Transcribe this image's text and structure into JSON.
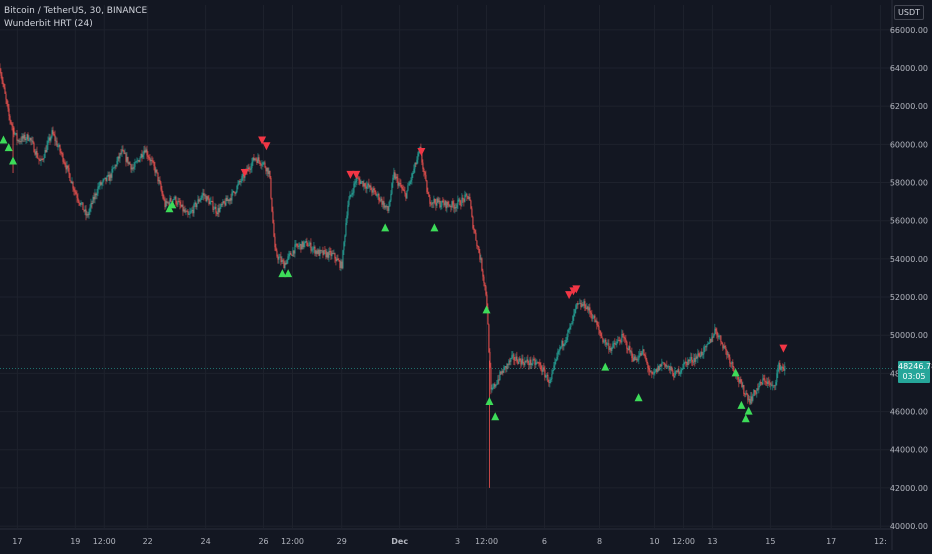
{
  "header": {
    "symbol_line": "Bitcoin / TetherUS, 30, BINANCE",
    "indicator_line": "Wunderbit HRT (24)",
    "currency": "USDT"
  },
  "price_tag": {
    "price": "48246.78",
    "countdown": "03:05"
  },
  "colors": {
    "background": "#131722",
    "bull": "#26a69a",
    "bear": "#ef5350",
    "buy_signal": "#3ddc59",
    "sell_signal": "#f23645",
    "grid": "#1e222d",
    "axis_text": "#b2b5be"
  },
  "chart_data": {
    "type": "candlestick",
    "symbol": "BTCUSDT",
    "timeframe": "30",
    "exchange": "BINANCE",
    "indicator": "Wunderbit HRT (24)",
    "x_axis": {
      "ticks": [
        "17",
        "19",
        "12:00",
        "22",
        "24",
        "26",
        "12:00",
        "29",
        "Dec",
        "3",
        "12:00",
        "6",
        "8",
        "10",
        "12:00",
        "13",
        "15",
        "17",
        "12:"
      ],
      "tick_pos": [
        0.6,
        2.6,
        3.6,
        5.1,
        7.1,
        9.1,
        10.1,
        11.8,
        13.8,
        15.8,
        16.8,
        18.8,
        20.7,
        22.6,
        23.6,
        24.6,
        26.6,
        28.7,
        30.4
      ],
      "range": [
        0,
        30.8
      ]
    },
    "y_axis": {
      "ticks": [
        40000,
        42000,
        44000,
        46000,
        48000,
        50000,
        52000,
        54000,
        56000,
        58000,
        60000,
        62000,
        64000,
        66000
      ],
      "tick_labels": [
        "40000.00",
        "42000.00",
        "44000.00",
        "46000.00",
        "48000.00",
        "50000.00",
        "52000.00",
        "54000.00",
        "56000.00",
        "58000.00",
        "60000.00",
        "62000.00",
        "64000.00",
        "66000.00"
      ],
      "range": [
        39900,
        67300
      ]
    },
    "last_price": 48246.78,
    "price_path": [
      [
        0.0,
        64000
      ],
      [
        0.3,
        61500
      ],
      [
        0.6,
        60200
      ],
      [
        1.0,
        60400
      ],
      [
        1.4,
        59000
      ],
      [
        1.8,
        60600
      ],
      [
        2.2,
        59200
      ],
      [
        2.6,
        57500
      ],
      [
        3.0,
        56200
      ],
      [
        3.4,
        57800
      ],
      [
        3.8,
        58300
      ],
      [
        4.2,
        59600
      ],
      [
        4.6,
        58700
      ],
      [
        5.0,
        59800
      ],
      [
        5.4,
        58500
      ],
      [
        5.7,
        56800
      ],
      [
        6.0,
        57200
      ],
      [
        6.5,
        56200
      ],
      [
        7.0,
        57400
      ],
      [
        7.5,
        56500
      ],
      [
        8.0,
        57300
      ],
      [
        8.4,
        58300
      ],
      [
        8.8,
        59300
      ],
      [
        9.1,
        59000
      ],
      [
        9.3,
        58500
      ],
      [
        9.5,
        54300
      ],
      [
        9.8,
        53700
      ],
      [
        10.2,
        54600
      ],
      [
        10.6,
        54800
      ],
      [
        11.0,
        54300
      ],
      [
        11.5,
        54200
      ],
      [
        11.8,
        53600
      ],
      [
        12.0,
        56800
      ],
      [
        12.3,
        58200
      ],
      [
        12.7,
        57800
      ],
      [
        13.1,
        57200
      ],
      [
        13.4,
        56500
      ],
      [
        13.6,
        58400
      ],
      [
        14.0,
        57300
      ],
      [
        14.3,
        58700
      ],
      [
        14.5,
        59700
      ],
      [
        14.8,
        57100
      ],
      [
        15.2,
        56900
      ],
      [
        15.7,
        56800
      ],
      [
        16.2,
        57300
      ],
      [
        16.3,
        56000
      ],
      [
        16.6,
        53900
      ],
      [
        16.8,
        52000
      ],
      [
        16.95,
        47000
      ],
      [
        17.3,
        48000
      ],
      [
        17.7,
        48800
      ],
      [
        18.1,
        48600
      ],
      [
        18.6,
        48500
      ],
      [
        19.0,
        47500
      ],
      [
        19.3,
        49200
      ],
      [
        19.7,
        50400
      ],
      [
        19.9,
        51500
      ],
      [
        20.2,
        51600
      ],
      [
        20.5,
        50900
      ],
      [
        20.8,
        49800
      ],
      [
        21.1,
        49300
      ],
      [
        21.5,
        49900
      ],
      [
        21.9,
        48700
      ],
      [
        22.2,
        49100
      ],
      [
        22.5,
        47800
      ],
      [
        22.9,
        48600
      ],
      [
        23.3,
        47900
      ],
      [
        23.7,
        48600
      ],
      [
        24.0,
        48800
      ],
      [
        24.4,
        49300
      ],
      [
        24.7,
        50300
      ],
      [
        25.0,
        49400
      ],
      [
        25.3,
        48400
      ],
      [
        25.6,
        47300
      ],
      [
        25.9,
        46600
      ],
      [
        26.1,
        47100
      ],
      [
        26.4,
        47700
      ],
      [
        26.7,
        47200
      ],
      [
        26.9,
        48400
      ],
      [
        27.1,
        48246.78
      ]
    ],
    "spikes": [
      {
        "x": 16.9,
        "low": 42000
      },
      {
        "x": 0.45,
        "low": 58500
      }
    ],
    "buy_signals": [
      {
        "x": 0.12,
        "price": 60200
      },
      {
        "x": 0.3,
        "price": 59800
      },
      {
        "x": 0.45,
        "price": 59100
      },
      {
        "x": 5.85,
        "price": 56600
      },
      {
        "x": 5.95,
        "price": 56800
      },
      {
        "x": 9.75,
        "price": 53200
      },
      {
        "x": 9.95,
        "price": 53200
      },
      {
        "x": 13.3,
        "price": 55600
      },
      {
        "x": 15.0,
        "price": 55600
      },
      {
        "x": 16.8,
        "price": 51300
      },
      {
        "x": 16.9,
        "price": 46500
      },
      {
        "x": 17.1,
        "price": 45700
      },
      {
        "x": 20.9,
        "price": 48300
      },
      {
        "x": 22.05,
        "price": 46700
      },
      {
        "x": 25.4,
        "price": 48000
      },
      {
        "x": 25.6,
        "price": 46300
      },
      {
        "x": 25.75,
        "price": 45600
      },
      {
        "x": 25.85,
        "price": 46000
      }
    ],
    "sell_signals": [
      {
        "x": 8.45,
        "price": 58500
      },
      {
        "x": 9.05,
        "price": 60200
      },
      {
        "x": 9.2,
        "price": 59900
      },
      {
        "x": 12.1,
        "price": 58400
      },
      {
        "x": 12.3,
        "price": 58400
      },
      {
        "x": 14.55,
        "price": 59600
      },
      {
        "x": 19.65,
        "price": 52100
      },
      {
        "x": 19.8,
        "price": 52300
      },
      {
        "x": 19.9,
        "price": 52400
      },
      {
        "x": 27.05,
        "price": 49300
      }
    ]
  }
}
